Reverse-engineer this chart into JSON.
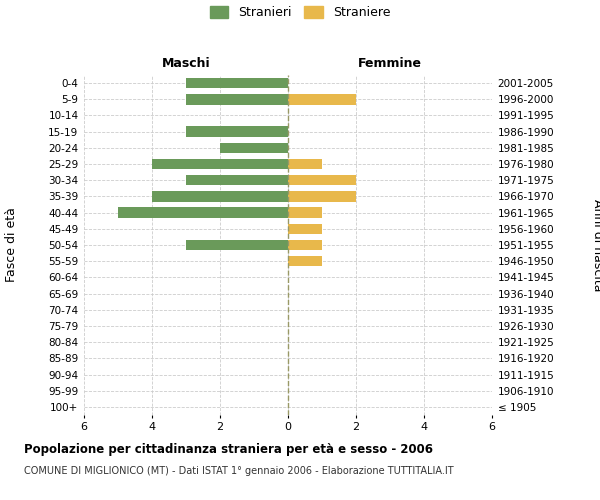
{
  "age_groups": [
    "100+",
    "95-99",
    "90-94",
    "85-89",
    "80-84",
    "75-79",
    "70-74",
    "65-69",
    "60-64",
    "55-59",
    "50-54",
    "45-49",
    "40-44",
    "35-39",
    "30-34",
    "25-29",
    "20-24",
    "15-19",
    "10-14",
    "5-9",
    "0-4"
  ],
  "birth_years": [
    "≤ 1905",
    "1906-1910",
    "1911-1915",
    "1916-1920",
    "1921-1925",
    "1926-1930",
    "1931-1935",
    "1936-1940",
    "1941-1945",
    "1946-1950",
    "1951-1955",
    "1956-1960",
    "1961-1965",
    "1966-1970",
    "1971-1975",
    "1976-1980",
    "1981-1985",
    "1986-1990",
    "1991-1995",
    "1996-2000",
    "2001-2005"
  ],
  "maschi": [
    0,
    0,
    0,
    0,
    0,
    0,
    0,
    0,
    0,
    0,
    3,
    0,
    5,
    4,
    3,
    4,
    2,
    3,
    0,
    3,
    3
  ],
  "femmine": [
    0,
    0,
    0,
    0,
    0,
    0,
    0,
    0,
    0,
    1,
    1,
    1,
    1,
    2,
    2,
    1,
    0,
    0,
    0,
    2,
    0
  ],
  "maschi_color": "#6a9a5a",
  "femmine_color": "#e8b84b",
  "title": "Popolazione per cittadinanza straniera per età e sesso - 2006",
  "subtitle": "COMUNE DI MIGLIONICO (MT) - Dati ISTAT 1° gennaio 2006 - Elaborazione TUTTITALIA.IT",
  "xlabel_maschi": "Maschi",
  "xlabel_femmine": "Femmine",
  "ylabel": "Fasce di età",
  "ylabel_right": "Anni di nascita",
  "legend_maschi": "Stranieri",
  "legend_femmine": "Straniere",
  "xlim": 6,
  "background_color": "#ffffff",
  "grid_color": "#cccccc"
}
